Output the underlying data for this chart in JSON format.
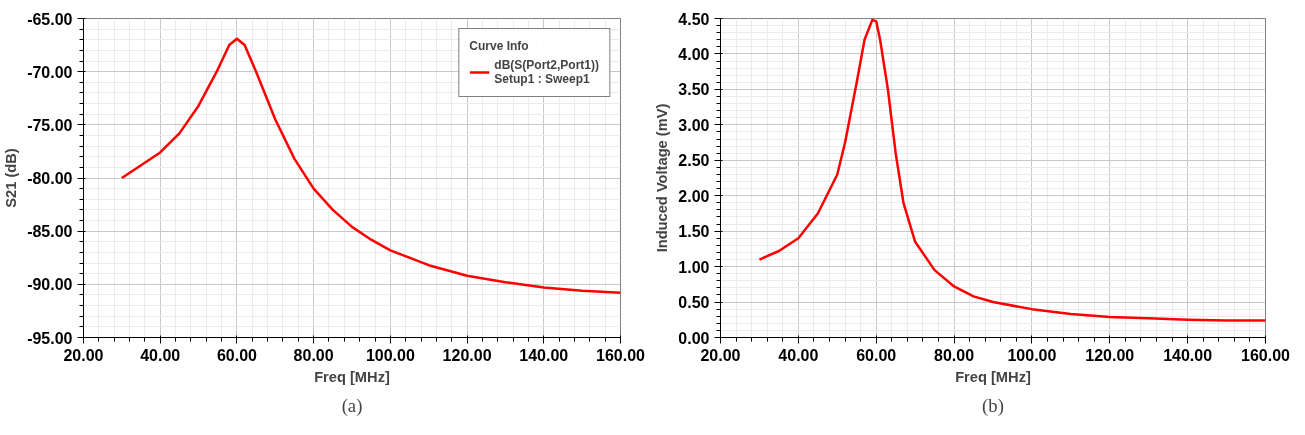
{
  "chart_data": [
    {
      "type": "line",
      "xlabel": "Freq [MHz]",
      "ylabel": "S21 (dB)",
      "legend_title": "Curve Info",
      "legend": "top right",
      "grid": true,
      "xlim": [
        20,
        160
      ],
      "ylim": [
        -95,
        -65
      ],
      "xticks": [
        {
          "value": 20,
          "label": "20.00"
        },
        {
          "value": 40,
          "label": "40.00"
        },
        {
          "value": 60,
          "label": "60.00"
        },
        {
          "value": 80,
          "label": "80.00"
        },
        {
          "value": 100,
          "label": "100.00"
        },
        {
          "value": 120,
          "label": "120.00"
        },
        {
          "value": 140,
          "label": "140.00"
        },
        {
          "value": 160,
          "label": "160.00"
        }
      ],
      "yticks": [
        {
          "value": -95,
          "label": "-95.00"
        },
        {
          "value": -90,
          "label": "-90.00"
        },
        {
          "value": -85,
          "label": "-85.00"
        },
        {
          "value": -80,
          "label": "-80.00"
        },
        {
          "value": -75,
          "label": "-75.00"
        },
        {
          "value": -70,
          "label": "-70.00"
        },
        {
          "value": -65,
          "label": "-65.00"
        }
      ],
      "annotations": [
        "(a)"
      ],
      "series": [
        {
          "name": "dB(S(Port2,Port1))\nSetup1 : Sweep1",
          "color": "#ff0000",
          "x": [
            30,
            35,
            40,
            45,
            50,
            55,
            58,
            60,
            62,
            65,
            70,
            75,
            80,
            85,
            90,
            95,
            100,
            110,
            120,
            130,
            140,
            150,
            160
          ],
          "values": [
            -80.0,
            -78.8,
            -77.6,
            -75.8,
            -73.2,
            -69.8,
            -67.5,
            -66.9,
            -67.5,
            -70.0,
            -74.5,
            -78.2,
            -81.0,
            -83.0,
            -84.6,
            -85.8,
            -86.8,
            -88.2,
            -89.2,
            -89.8,
            -90.3,
            -90.6,
            -90.8
          ]
        }
      ]
    },
    {
      "type": "line",
      "xlabel": "Freq [MHz]",
      "ylabel": "Induced Voltage (mV)",
      "grid": true,
      "xlim": [
        20,
        160
      ],
      "ylim": [
        0,
        4.5
      ],
      "xticks": [
        {
          "value": 20,
          "label": "20.00"
        },
        {
          "value": 40,
          "label": "40.00"
        },
        {
          "value": 60,
          "label": "60.00"
        },
        {
          "value": 80,
          "label": "80.00"
        },
        {
          "value": 100,
          "label": "100.00"
        },
        {
          "value": 120,
          "label": "120.00"
        },
        {
          "value": 140,
          "label": "140.00"
        },
        {
          "value": 160,
          "label": "160.00"
        }
      ],
      "yticks": [
        {
          "value": 0,
          "label": "0.00"
        },
        {
          "value": 0.5,
          "label": "0.50"
        },
        {
          "value": 1,
          "label": "1.00"
        },
        {
          "value": 1.5,
          "label": "1.50"
        },
        {
          "value": 2,
          "label": "2.00"
        },
        {
          "value": 2.5,
          "label": "2.50"
        },
        {
          "value": 3,
          "label": "3.00"
        },
        {
          "value": 3.5,
          "label": "3.50"
        },
        {
          "value": 4,
          "label": "4.00"
        },
        {
          "value": 4.5,
          "label": "4.50"
        }
      ],
      "annotations": [
        "(b)"
      ],
      "series": [
        {
          "color": "#ff0000",
          "x": [
            30,
            35,
            40,
            45,
            50,
            52,
            55,
            57,
            59,
            60,
            61,
            63,
            65,
            67,
            70,
            75,
            80,
            85,
            90,
            100,
            110,
            120,
            130,
            140,
            150,
            160
          ],
          "values": [
            1.1,
            1.22,
            1.4,
            1.75,
            2.3,
            2.75,
            3.6,
            4.2,
            4.48,
            4.46,
            4.2,
            3.5,
            2.6,
            1.9,
            1.35,
            0.95,
            0.72,
            0.58,
            0.5,
            0.4,
            0.33,
            0.29,
            0.27,
            0.25,
            0.24,
            0.24
          ]
        }
      ]
    }
  ]
}
